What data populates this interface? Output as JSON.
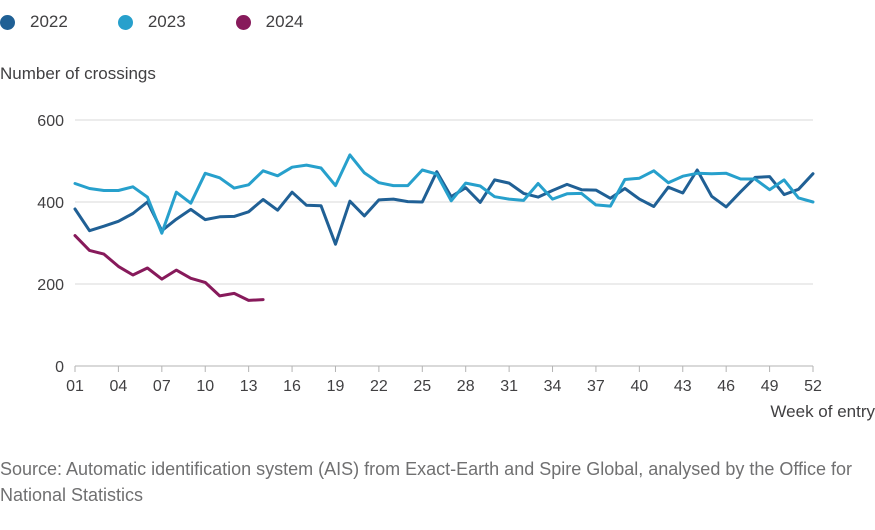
{
  "legend": [
    {
      "label": "2022",
      "color": "#206095"
    },
    {
      "label": "2023",
      "color": "#27a0cc"
    },
    {
      "label": "2024",
      "color": "#871a5b"
    }
  ],
  "source": "Source: Automatic identification system (AIS) from Exact-Earth and Spire Global, analysed by the Office for National Statistics",
  "chart_data": {
    "type": "line",
    "title": "",
    "ylabel": "Number of crossings",
    "xlabel": "Week of entry",
    "ylim": [
      0,
      600
    ],
    "xlim": [
      1,
      52
    ],
    "yticks": [
      0,
      200,
      400,
      600
    ],
    "xticks": [
      {
        "value": 1,
        "label": "01"
      },
      {
        "value": 4,
        "label": "04"
      },
      {
        "value": 7,
        "label": "07"
      },
      {
        "value": 10,
        "label": "10"
      },
      {
        "value": 13,
        "label": "13"
      },
      {
        "value": 16,
        "label": "16"
      },
      {
        "value": 19,
        "label": "19"
      },
      {
        "value": 22,
        "label": "22"
      },
      {
        "value": 25,
        "label": "25"
      },
      {
        "value": 28,
        "label": "28"
      },
      {
        "value": 31,
        "label": "31"
      },
      {
        "value": 34,
        "label": "34"
      },
      {
        "value": 37,
        "label": "37"
      },
      {
        "value": 40,
        "label": "40"
      },
      {
        "value": 43,
        "label": "43"
      },
      {
        "value": 46,
        "label": "46"
      },
      {
        "value": 49,
        "label": "49"
      },
      {
        "value": 52,
        "label": "52"
      }
    ],
    "grid": "horizontal",
    "legend_position": "top-left",
    "series": [
      {
        "name": "2022",
        "color": "#206095",
        "start_week": 1,
        "values": [
          383,
          330,
          341,
          353,
          372,
          400,
          330,
          358,
          382,
          357,
          364,
          365,
          376,
          406,
          380,
          424,
          392,
          391,
          297,
          402,
          366,
          405,
          407,
          401,
          400,
          474,
          413,
          435,
          399,
          454,
          446,
          421,
          412,
          428,
          443,
          430,
          429,
          409,
          433,
          407,
          389,
          436,
          422,
          478,
          414,
          388,
          425,
          460,
          462,
          418,
          431,
          469
        ]
      },
      {
        "name": "2023",
        "color": "#27a0cc",
        "start_week": 1,
        "values": [
          445,
          433,
          428,
          428,
          437,
          412,
          324,
          424,
          397,
          470,
          459,
          434,
          442,
          476,
          464,
          485,
          490,
          483,
          440,
          515,
          471,
          447,
          440,
          440,
          478,
          468,
          403,
          446,
          439,
          413,
          407,
          404,
          445,
          407,
          420,
          421,
          393,
          390,
          455,
          458,
          476,
          447,
          463,
          470,
          469,
          470,
          456,
          456,
          430,
          454,
          410,
          400
        ]
      },
      {
        "name": "2024",
        "color": "#871a5b",
        "start_week": 1,
        "values": [
          318,
          282,
          273,
          243,
          222,
          239,
          212,
          234,
          214,
          204,
          171,
          177,
          160,
          162
        ]
      }
    ]
  }
}
